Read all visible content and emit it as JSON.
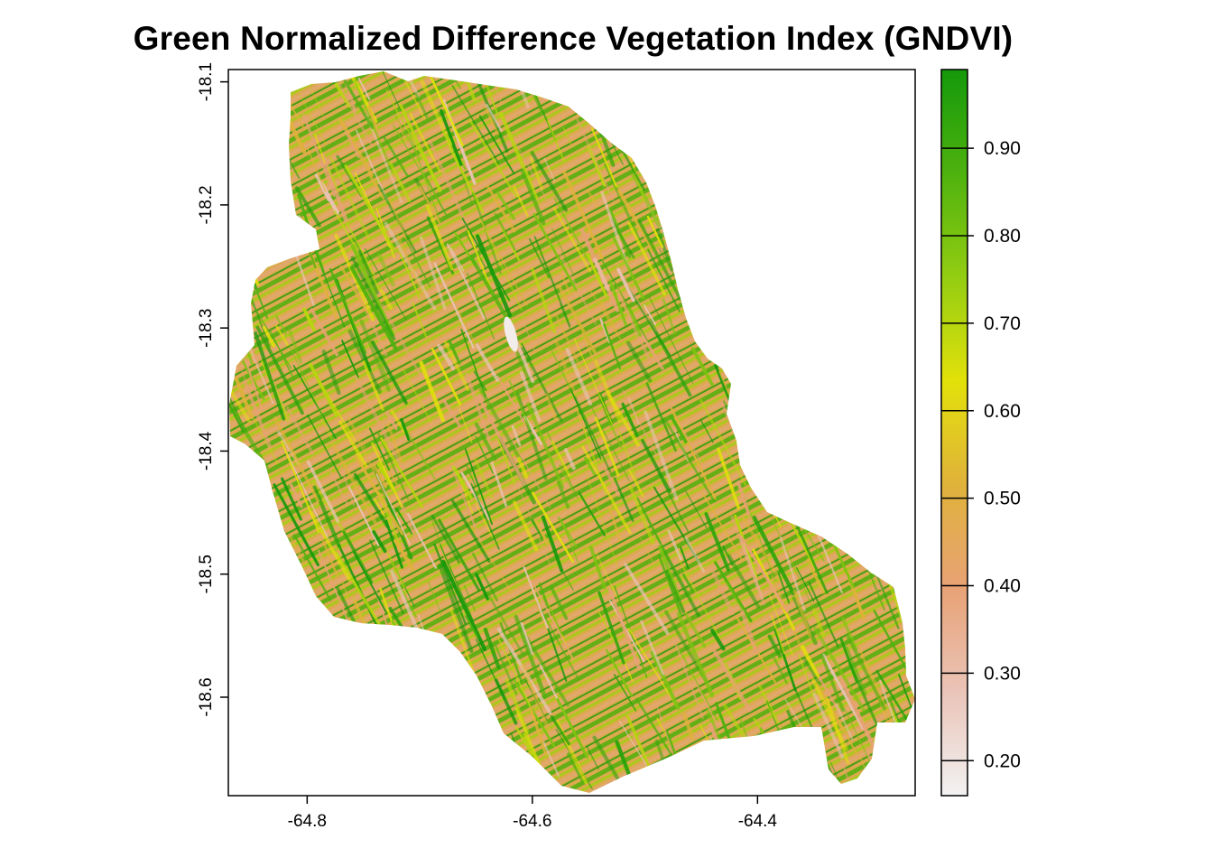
{
  "title": "Green Normalized Difference Vegetation Index (GNDVI)",
  "map": {
    "x_range": [
      -64.87,
      -64.26
    ],
    "y_range": [
      -18.68,
      -18.09
    ],
    "x_ticks": [
      {
        "value": -64.8,
        "label": "-64.8"
      },
      {
        "value": -64.6,
        "label": "-64.6"
      },
      {
        "value": -64.4,
        "label": "-64.4"
      }
    ],
    "y_ticks": [
      {
        "value": -18.1,
        "label": "-18.1"
      },
      {
        "value": -18.2,
        "label": "-18.2"
      },
      {
        "value": -18.3,
        "label": "-18.3"
      },
      {
        "value": -18.4,
        "label": "-18.4"
      },
      {
        "value": -18.5,
        "label": "-18.5"
      },
      {
        "value": -18.6,
        "label": "-18.6"
      }
    ]
  },
  "legend": {
    "range": [
      0.16,
      0.99
    ],
    "ticks": [
      {
        "value": 0.2,
        "label": "0.20"
      },
      {
        "value": 0.3,
        "label": "0.30"
      },
      {
        "value": 0.4,
        "label": "0.40"
      },
      {
        "value": 0.5,
        "label": "0.50"
      },
      {
        "value": 0.6,
        "label": "0.60"
      },
      {
        "value": 0.7,
        "label": "0.70"
      },
      {
        "value": 0.8,
        "label": "0.80"
      },
      {
        "value": 0.9,
        "label": "0.90"
      }
    ],
    "colors": [
      "#f2f2f2",
      "#eac4b8",
      "#e8a276",
      "#e0b23a",
      "#e2e10a",
      "#93cd12",
      "#4eb20e",
      "#14990b"
    ]
  }
}
